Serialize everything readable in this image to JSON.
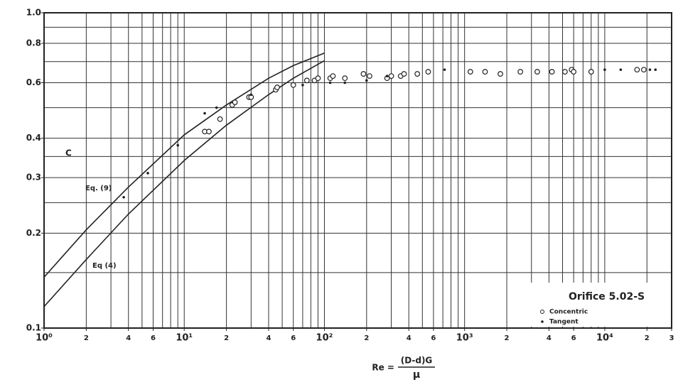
{
  "chart_data": {
    "type": "scatter",
    "xlog": true,
    "ylog": true,
    "xlabel": "Re =",
    "xlabel_num": "(D-d)G",
    "xlabel_den": "μ",
    "ylabel": "C",
    "annotations": [
      "Eq. (9)",
      "Eq (4)"
    ],
    "legend_title": "Orifice 5.02-S",
    "legend": "lower right",
    "xlim": [
      1,
      30000
    ],
    "ylim": [
      0.1,
      1
    ],
    "xticks": [
      {
        "value": 1,
        "label": "10⁰"
      },
      2,
      4,
      6,
      {
        "value": 10,
        "label": "10¹"
      },
      {
        "value": 20,
        "label": "2"
      },
      {
        "value": 40,
        "label": "4"
      },
      {
        "value": 60,
        "label": "6"
      },
      {
        "value": 100,
        "label": "10²"
      },
      {
        "value": 200,
        "label": "2"
      },
      {
        "value": 400,
        "label": "4"
      },
      {
        "value": 600,
        "label": "6"
      },
      {
        "value": 1000,
        "label": "10³"
      },
      {
        "value": 2000,
        "label": "2"
      },
      {
        "value": 4000,
        "label": "4"
      },
      {
        "value": 6000,
        "label": "6"
      },
      {
        "value": 10000,
        "label": "10⁴"
      },
      {
        "value": 20000,
        "label": "2"
      },
      {
        "value": 30000,
        "label": "3"
      }
    ],
    "yticks": [
      0.1,
      0.2,
      0.3,
      0.4,
      0.6,
      0.8,
      {
        "value": 1,
        "label": "1.0"
      }
    ],
    "xgrid": [
      1,
      2,
      3,
      4,
      5,
      6,
      7,
      8,
      9,
      10,
      20,
      30,
      40,
      50,
      60,
      70,
      80,
      90,
      100,
      200,
      300,
      400,
      500,
      600,
      700,
      800,
      900,
      1000,
      2000,
      3000,
      4000,
      5000,
      6000,
      7000,
      8000,
      9000,
      10000,
      20000,
      30000
    ],
    "ygrid": [
      0.1,
      0.15,
      0.2,
      0.25,
      0.3,
      0.35,
      0.4,
      0.5,
      0.6,
      0.7,
      0.8,
      0.9,
      1
    ],
    "curves": [
      {
        "color": "#222",
        "x": [
          1,
          2,
          4,
          10,
          20,
          40,
          60,
          100
        ],
        "values": [
          0.145,
          0.205,
          0.28,
          0.41,
          0.51,
          0.62,
          0.68,
          0.745
        ]
      },
      {
        "color": "#222",
        "x": [
          1,
          2,
          4,
          10,
          20,
          40,
          60,
          100
        ],
        "values": [
          0.117,
          0.165,
          0.23,
          0.34,
          0.44,
          0.55,
          0.62,
          0.705
        ]
      }
    ],
    "series": [
      {
        "name": "Concentric",
        "marker": "open",
        "color": "#222",
        "x": [
          14,
          15,
          18,
          22,
          23,
          29,
          30,
          45,
          46,
          60,
          75,
          85,
          90,
          110,
          115,
          140,
          190,
          210,
          280,
          300,
          350,
          370,
          460,
          550,
          1100,
          1400,
          1800,
          2500,
          3300,
          4200,
          5200,
          5800,
          6000,
          8000,
          17000,
          19000
        ],
        "values": [
          0.42,
          0.42,
          0.46,
          0.51,
          0.52,
          0.54,
          0.54,
          0.57,
          0.58,
          0.59,
          0.61,
          0.61,
          0.62,
          0.62,
          0.63,
          0.62,
          0.64,
          0.63,
          0.62,
          0.63,
          0.63,
          0.64,
          0.64,
          0.65,
          0.65,
          0.65,
          0.64,
          0.65,
          0.65,
          0.65,
          0.65,
          0.66,
          0.65,
          0.65,
          0.66,
          0.66
        ]
      },
      {
        "name": "Tangent",
        "marker": "dot",
        "color": "#222",
        "x": [
          3.7,
          5.5,
          9,
          14,
          17,
          30,
          70,
          110,
          140,
          200,
          280,
          720,
          10000,
          13000,
          21000,
          23000
        ],
        "values": [
          0.26,
          0.31,
          0.38,
          0.48,
          0.5,
          0.55,
          0.59,
          0.6,
          0.6,
          0.61,
          0.63,
          0.66,
          0.66,
          0.66,
          0.66,
          0.66
        ]
      }
    ]
  }
}
